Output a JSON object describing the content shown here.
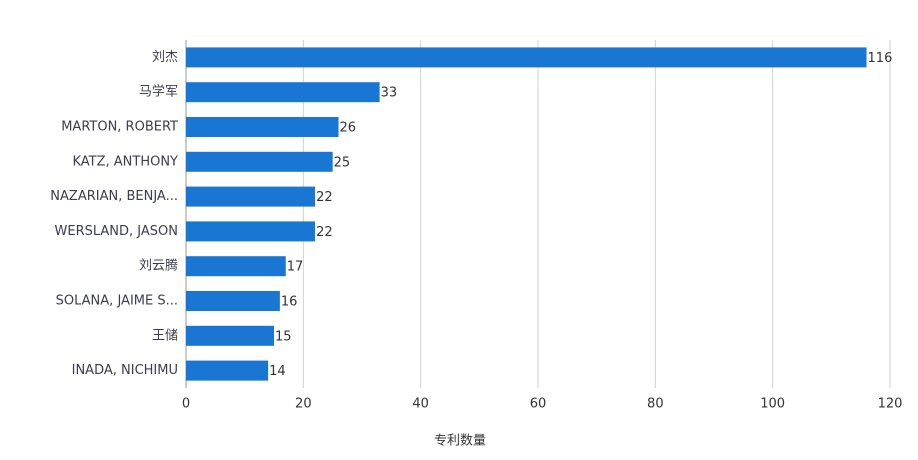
{
  "chart_data": {
    "type": "bar",
    "orientation": "horizontal",
    "categories": [
      "刘杰",
      "马学军",
      "MARTON, ROBERT",
      "KATZ, ANTHONY",
      "NAZARIAN, BENJA...",
      "WERSLAND, JASON",
      "刘云腾",
      "SOLANA, JAIME S...",
      "王储",
      "INADA, NICHIMU"
    ],
    "values": [
      116,
      33,
      26,
      25,
      22,
      22,
      17,
      16,
      15,
      14
    ],
    "color": "#1976d2",
    "x_label": "专利数量",
    "xlim": [
      0,
      120
    ],
    "xticks": [
      0,
      20,
      40,
      60,
      80,
      100,
      120
    ],
    "grid": true
  }
}
